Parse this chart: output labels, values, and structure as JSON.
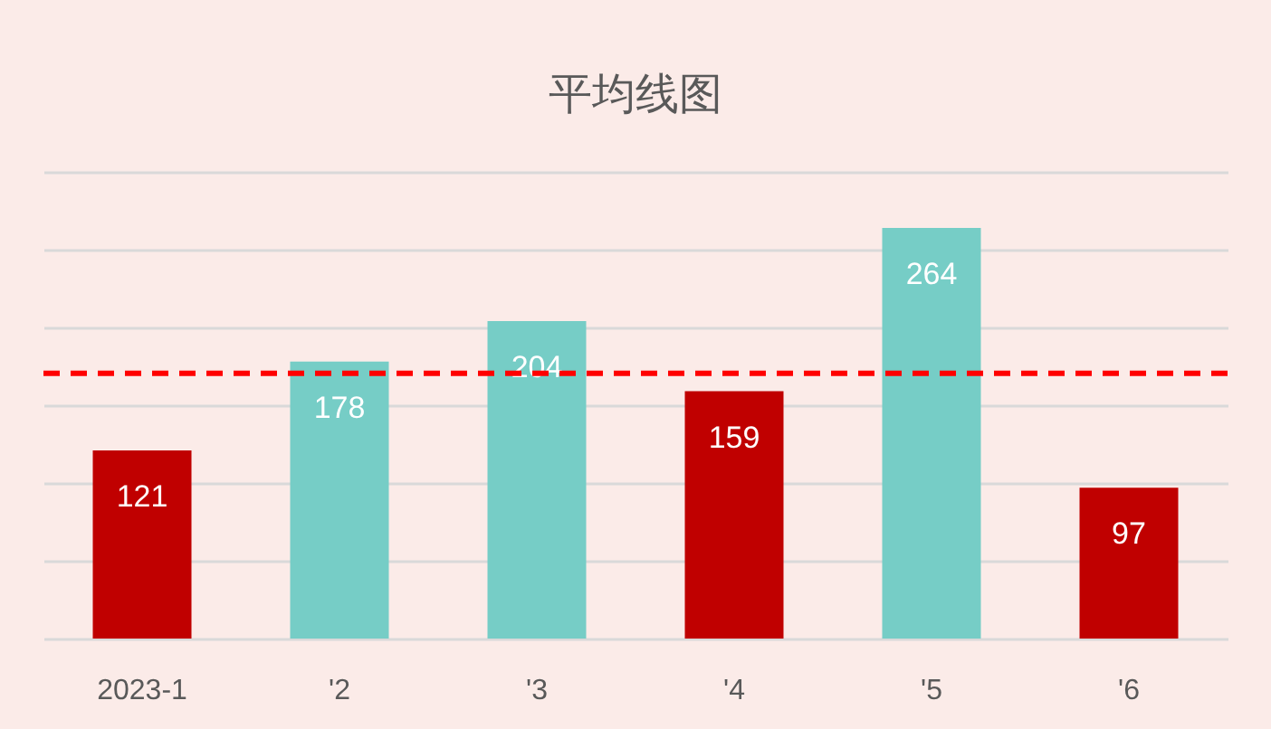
{
  "chart_data": {
    "type": "bar",
    "title": "平均线图",
    "categories": [
      "2023-1",
      "'2",
      "'3",
      "'4",
      "'5",
      "'6"
    ],
    "values": [
      121,
      178,
      204,
      159,
      264,
      97
    ],
    "colors": [
      "#c00000",
      "#76cdc6",
      "#76cdc6",
      "#c00000",
      "#76cdc6",
      "#c00000"
    ],
    "ylim": [
      0,
      300
    ],
    "yticks": [
      {
        "value": 0,
        "label": null
      },
      {
        "value": 50,
        "label": null
      },
      {
        "value": 100,
        "label": null
      },
      {
        "value": 150,
        "label": null
      },
      {
        "value": 200,
        "label": null
      },
      {
        "value": 250,
        "label": null
      },
      {
        "value": 300,
        "label": null
      }
    ],
    "grid": "y",
    "tick_labels": "x",
    "data_labels": true,
    "ref_lines": [
      {
        "axis": "y",
        "value": 170.5,
        "color": "#ff0000",
        "line_style": "dashed"
      }
    ]
  }
}
